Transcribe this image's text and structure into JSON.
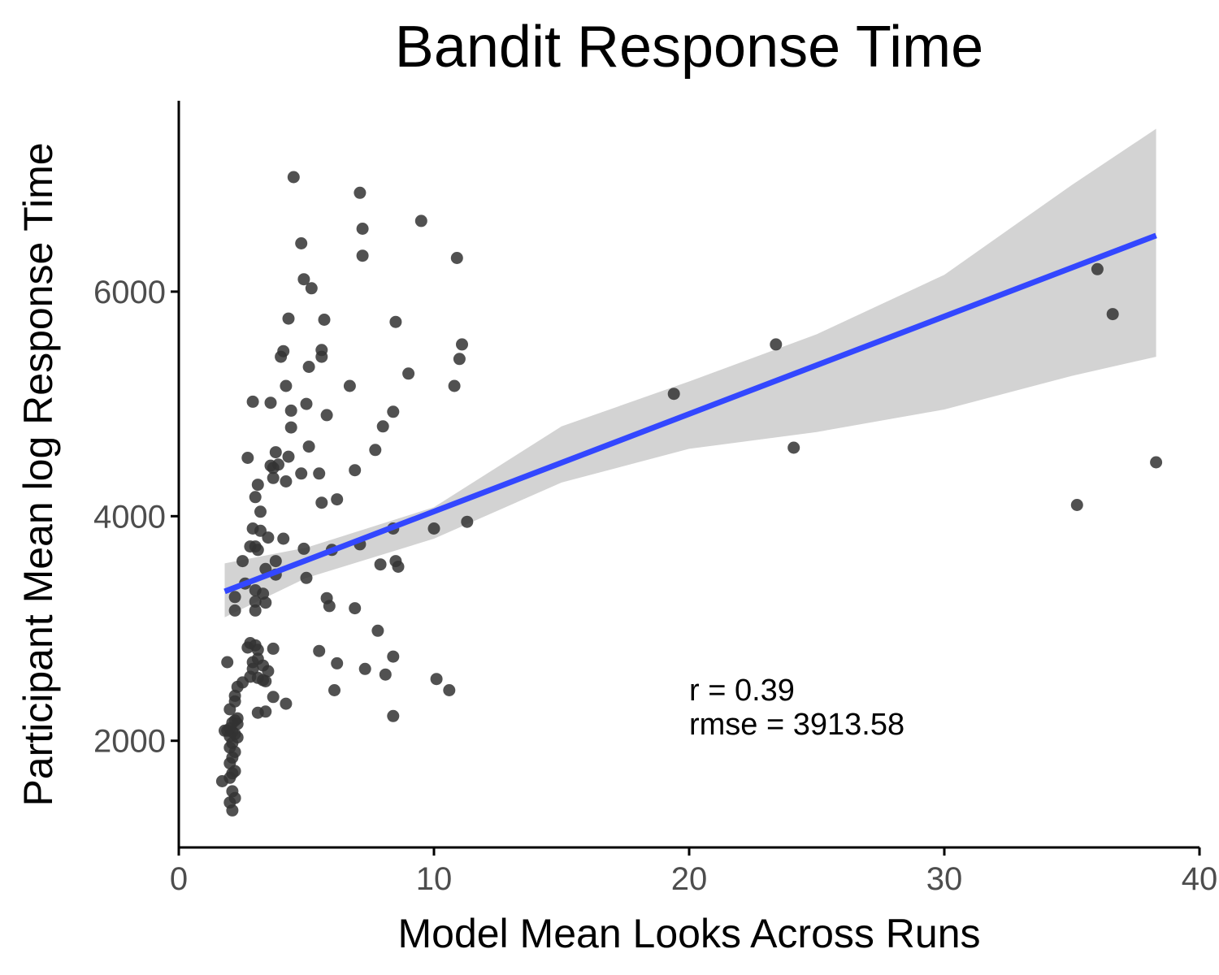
{
  "chart_data": {
    "type": "scatter",
    "title": "Bandit Response Time",
    "xlabel": "Model Mean Looks Across Runs",
    "ylabel": "Participant Mean log Response Time",
    "xlim": [
      0,
      40
    ],
    "ylim": [
      1050,
      7700
    ],
    "x_ticks": [
      0,
      10,
      20,
      30,
      40
    ],
    "y_ticks": [
      2000,
      4000,
      6000
    ],
    "x_tick_labels": [
      "0",
      "10",
      "20",
      "30",
      "40"
    ],
    "y_tick_labels": [
      "2000",
      "4000",
      "6000"
    ],
    "grid": false,
    "legend": "none",
    "colors": {
      "points": "#333333",
      "fit_line": "#3347ff",
      "confidence_band": "#d3d3d3"
    },
    "fit_line": {
      "x": [
        1.8,
        38.3
      ],
      "y": [
        3330,
        6500
      ]
    },
    "confidence_band": {
      "x": [
        1.8,
        5,
        10,
        15,
        20,
        25,
        30,
        35,
        38.3
      ],
      "lower": [
        3100,
        3450,
        3800,
        4300,
        4600,
        4750,
        4950,
        5250,
        5420
      ],
      "upper": [
        3580,
        3720,
        4080,
        4800,
        5200,
        5620,
        6150,
        6950,
        7450
      ]
    },
    "annotations": [
      "r = 0.39",
      "rmse = 3913.58"
    ],
    "points": [
      [
        4.5,
        7020
      ],
      [
        7.1,
        6880
      ],
      [
        9.5,
        6630
      ],
      [
        7.2,
        6560
      ],
      [
        4.8,
        6430
      ],
      [
        7.2,
        6320
      ],
      [
        10.9,
        6300
      ],
      [
        4.9,
        6110
      ],
      [
        5.2,
        6030
      ],
      [
        4.3,
        5760
      ],
      [
        5.7,
        5750
      ],
      [
        8.5,
        5730
      ],
      [
        4.1,
        5470
      ],
      [
        5.6,
        5480
      ],
      [
        4.0,
        5420
      ],
      [
        5.6,
        5420
      ],
      [
        11.1,
        5530
      ],
      [
        11.0,
        5400
      ],
      [
        5.1,
        5330
      ],
      [
        9.0,
        5270
      ],
      [
        4.2,
        5160
      ],
      [
        6.7,
        5160
      ],
      [
        10.8,
        5160
      ],
      [
        2.9,
        5020
      ],
      [
        3.6,
        5010
      ],
      [
        5.0,
        5000
      ],
      [
        4.4,
        4940
      ],
      [
        5.8,
        4900
      ],
      [
        8.4,
        4930
      ],
      [
        4.4,
        4790
      ],
      [
        8.0,
        4800
      ],
      [
        3.8,
        4570
      ],
      [
        4.3,
        4530
      ],
      [
        5.1,
        4620
      ],
      [
        7.7,
        4590
      ],
      [
        2.7,
        4520
      ],
      [
        3.6,
        4450
      ],
      [
        3.9,
        4460
      ],
      [
        3.7,
        4430
      ],
      [
        4.8,
        4380
      ],
      [
        5.5,
        4380
      ],
      [
        6.9,
        4410
      ],
      [
        3.7,
        4340
      ],
      [
        4.2,
        4310
      ],
      [
        3.1,
        4280
      ],
      [
        3.0,
        4170
      ],
      [
        6.2,
        4150
      ],
      [
        5.6,
        4120
      ],
      [
        3.2,
        4040
      ],
      [
        2.9,
        3890
      ],
      [
        3.2,
        3870
      ],
      [
        3.5,
        3810
      ],
      [
        4.1,
        3800
      ],
      [
        3.0,
        3730
      ],
      [
        2.8,
        3730
      ],
      [
        3.1,
        3700
      ],
      [
        4.9,
        3710
      ],
      [
        6.0,
        3700
      ],
      [
        7.1,
        3750
      ],
      [
        8.4,
        3890
      ],
      [
        10.0,
        3890
      ],
      [
        11.3,
        3950
      ],
      [
        3.8,
        3600
      ],
      [
        2.5,
        3600
      ],
      [
        7.9,
        3570
      ],
      [
        8.5,
        3600
      ],
      [
        8.6,
        3550
      ],
      [
        3.4,
        3530
      ],
      [
        3.8,
        3480
      ],
      [
        2.6,
        3400
      ],
      [
        3.0,
        3340
      ],
      [
        3.3,
        3310
      ],
      [
        5.0,
        3450
      ],
      [
        2.2,
        3280
      ],
      [
        3.0,
        3240
      ],
      [
        3.4,
        3230
      ],
      [
        5.8,
        3270
      ],
      [
        5.9,
        3200
      ],
      [
        2.2,
        3160
      ],
      [
        3.0,
        3160
      ],
      [
        6.9,
        3180
      ],
      [
        7.8,
        2980
      ],
      [
        2.8,
        2870
      ],
      [
        3.0,
        2850
      ],
      [
        2.7,
        2830
      ],
      [
        3.1,
        2810
      ],
      [
        3.7,
        2820
      ],
      [
        5.5,
        2800
      ],
      [
        8.4,
        2750
      ],
      [
        3.1,
        2730
      ],
      [
        2.9,
        2700
      ],
      [
        3.3,
        2670
      ],
      [
        6.2,
        2690
      ],
      [
        1.9,
        2700
      ],
      [
        2.9,
        2640
      ],
      [
        3.5,
        2620
      ],
      [
        7.3,
        2640
      ],
      [
        8.1,
        2590
      ],
      [
        2.8,
        2570
      ],
      [
        3.1,
        2560
      ],
      [
        3.3,
        2540
      ],
      [
        2.5,
        2520
      ],
      [
        3.4,
        2530
      ],
      [
        10.1,
        2550
      ],
      [
        2.3,
        2480
      ],
      [
        6.1,
        2450
      ],
      [
        10.6,
        2450
      ],
      [
        2.2,
        2400
      ],
      [
        3.7,
        2390
      ],
      [
        2.2,
        2350
      ],
      [
        4.2,
        2330
      ],
      [
        2.0,
        2280
      ],
      [
        3.4,
        2260
      ],
      [
        3.1,
        2250
      ],
      [
        8.4,
        2220
      ],
      [
        2.3,
        2200
      ],
      [
        2.2,
        2180
      ],
      [
        2.1,
        2160
      ],
      [
        2.3,
        2150
      ],
      [
        2.0,
        2110
      ],
      [
        1.9,
        2090
      ],
      [
        2.1,
        2080
      ],
      [
        1.8,
        2090
      ],
      [
        2.2,
        2060
      ],
      [
        2.0,
        2040
      ],
      [
        2.3,
        2030
      ],
      [
        2.1,
        1980
      ],
      [
        2.0,
        1940
      ],
      [
        2.2,
        1900
      ],
      [
        2.1,
        1850
      ],
      [
        2.0,
        1800
      ],
      [
        2.2,
        1730
      ],
      [
        2.1,
        1710
      ],
      [
        2.0,
        1670
      ],
      [
        1.7,
        1640
      ],
      [
        2.1,
        1550
      ],
      [
        2.2,
        1490
      ],
      [
        2.0,
        1450
      ],
      [
        2.1,
        1380
      ],
      [
        19.4,
        5090
      ],
      [
        23.4,
        5530
      ],
      [
        24.1,
        4610
      ],
      [
        35.2,
        4100
      ],
      [
        36.0,
        6200
      ],
      [
        36.6,
        5800
      ],
      [
        38.3,
        4480
      ]
    ]
  }
}
